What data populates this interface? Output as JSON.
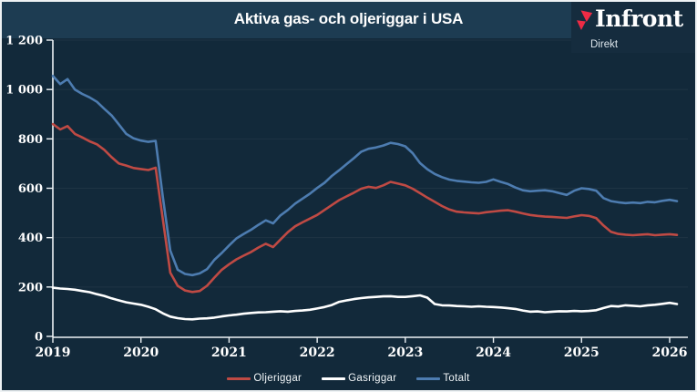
{
  "header": {
    "title": "Aktiva gas- och oljeriggar i USA",
    "logo": {
      "name": "Infront",
      "sub": "Direkt",
      "mark_color": "#ee2b45"
    }
  },
  "colors": {
    "background": "#12293a",
    "header_band": "#1d3c52",
    "logo_tile": "#152c3e",
    "axis": "#eef3f6",
    "gridline": "rgba(255,255,255,0.055)",
    "oil_line": "#bf4a44",
    "gas_line": "#ffffff",
    "total_line": "#4d7cb0"
  },
  "chart_data": {
    "type": "line",
    "title": "Aktiva gas- och oljeriggar i USA",
    "xlabel": "",
    "ylabel": "",
    "grid": "horizontal-faint",
    "legend_position": "bottom",
    "x_start_year": 2019,
    "x_step_months": 1,
    "x_axis": {
      "tick_values": [
        2019,
        2020,
        2021,
        2022,
        2023,
        2024,
        2025,
        2026
      ],
      "tick_labels": [
        "2019",
        "2020",
        "2021",
        "2022",
        "2023",
        "2024",
        "2025",
        "2026"
      ]
    },
    "y_axis": {
      "min": 0,
      "max": 1200,
      "tick_values": [
        0,
        200,
        400,
        600,
        800,
        1000,
        1200
      ],
      "tick_labels": [
        "0",
        "200",
        "400",
        "600",
        "800",
        "1 000",
        "1 200"
      ]
    },
    "series": [
      {
        "name": "Oljeriggar",
        "color": "#bf4a44",
        "values": [
          860,
          838,
          852,
          820,
          806,
          790,
          778,
          756,
          726,
          700,
          692,
          682,
          678,
          674,
          683,
          470,
          258,
          205,
          186,
          180,
          184,
          205,
          238,
          270,
          292,
          312,
          327,
          342,
          360,
          375,
          362,
          392,
          422,
          446,
          462,
          477,
          492,
          512,
          532,
          552,
          567,
          582,
          598,
          606,
          601,
          612,
          626,
          619,
          612,
          598,
          580,
          562,
          545,
          528,
          514,
          505,
          502,
          500,
          498,
          503,
          506,
          509,
          511,
          505,
          498,
          492,
          488,
          485,
          484,
          482,
          480,
          486,
          491,
          488,
          479,
          449,
          424,
          415,
          412,
          410,
          412,
          414,
          410,
          412,
          414,
          411
        ]
      },
      {
        "name": "Gasriggar",
        "color": "#ffffff",
        "values": [
          197,
          194,
          192,
          189,
          184,
          179,
          171,
          164,
          154,
          146,
          138,
          133,
          128,
          120,
          110,
          93,
          80,
          74,
          70,
          69,
          72,
          73,
          76,
          81,
          85,
          88,
          92,
          95,
          97,
          98,
          100,
          102,
          100,
          103,
          105,
          108,
          113,
          119,
          127,
          140,
          146,
          151,
          155,
          158,
          160,
          162,
          163,
          160,
          160,
          163,
          166,
          157,
          131,
          126,
          125,
          123,
          122,
          120,
          122,
          120,
          119,
          117,
          114,
          111,
          105,
          100,
          101,
          98,
          100,
          102,
          101,
          103,
          102,
          103,
          106,
          115,
          123,
          121,
          126,
          124,
          122,
          126,
          128,
          132,
          136,
          131
        ]
      },
      {
        "name": "Totalt",
        "color": "#4d7cb0",
        "values": [
          1055,
          1022,
          1042,
          1000,
          982,
          968,
          950,
          922,
          895,
          858,
          820,
          802,
          793,
          788,
          792,
          560,
          348,
          270,
          253,
          248,
          255,
          272,
          310,
          338,
          368,
          397,
          415,
          432,
          452,
          470,
          458,
          490,
          512,
          538,
          558,
          578,
          601,
          622,
          650,
          673,
          698,
          722,
          748,
          760,
          765,
          773,
          784,
          779,
          770,
          742,
          702,
          677,
          658,
          645,
          635,
          630,
          627,
          624,
          622,
          626,
          636,
          626,
          617,
          603,
          592,
          588,
          590,
          592,
          588,
          580,
          573,
          590,
          600,
          597,
          590,
          560,
          548,
          543,
          540,
          542,
          540,
          545,
          543,
          549,
          553,
          548
        ]
      }
    ]
  }
}
